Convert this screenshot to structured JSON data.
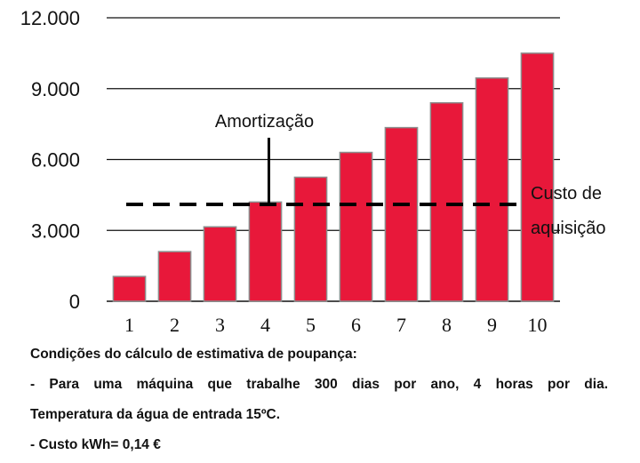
{
  "chart_data": {
    "type": "bar",
    "categories": [
      "1",
      "2",
      "3",
      "4",
      "5",
      "6",
      "7",
      "8",
      "9",
      "10"
    ],
    "values": [
      1050,
      2100,
      3150,
      4200,
      5250,
      6300,
      7350,
      8400,
      9450,
      10500
    ],
    "yticks": [
      "0",
      "3.000",
      "6.000",
      "9.000",
      "12.000"
    ],
    "ytick_values": [
      0,
      3000,
      6000,
      9000,
      12000
    ],
    "ylim": [
      0,
      12000
    ],
    "grid": true,
    "bar_color": "#e8183a",
    "reference_line": {
      "value": 4100,
      "label_line1": "Custo de",
      "label_line2": "aquisição"
    },
    "annotation": {
      "label": "Amortização",
      "category": "4"
    }
  },
  "notes": {
    "heading": "Condições do cálculo de estimativa de poupança:",
    "line1": "- Para uma máquina que trabalhe 300 dias por ano, 4 horas por dia.",
    "line2": "Temperatura da água de entrada 15ºC.",
    "line3": "- Custo kWh= 0,14 €"
  }
}
